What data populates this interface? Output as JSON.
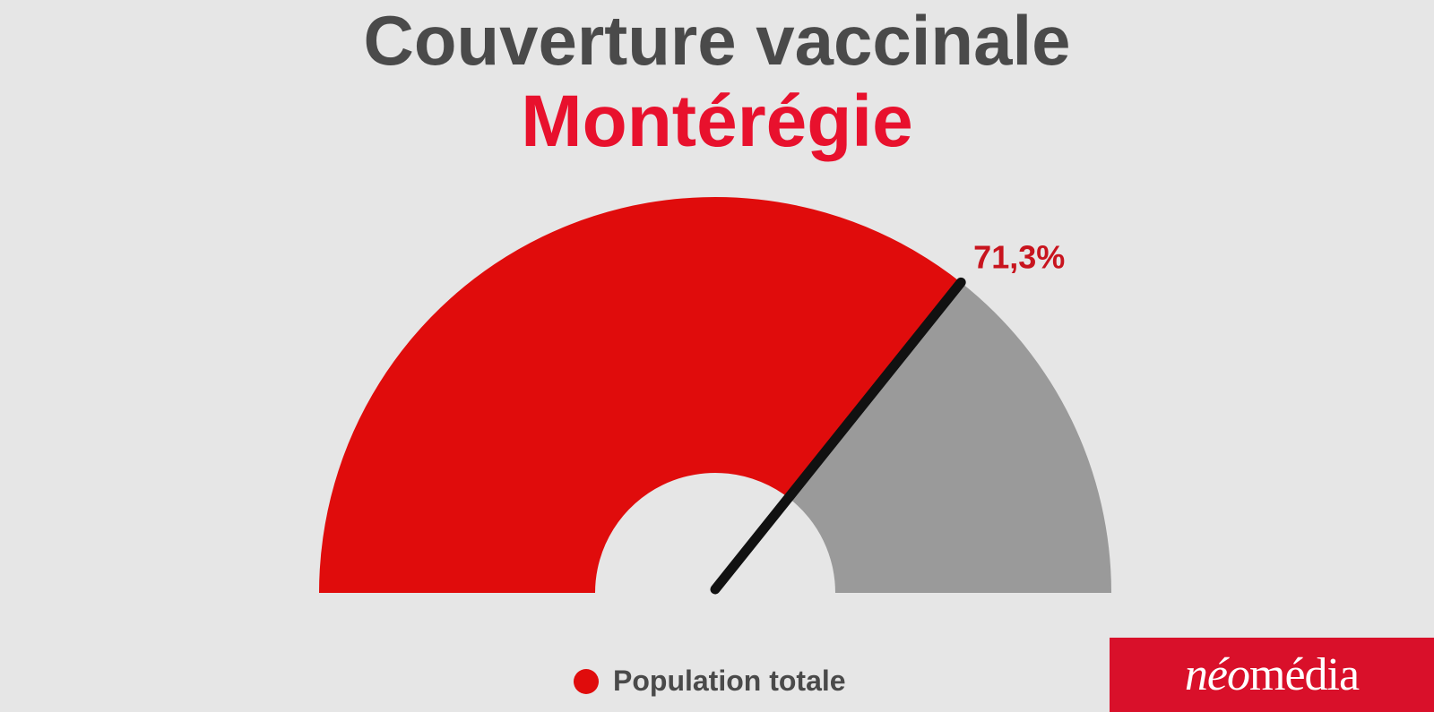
{
  "chart_data": {
    "type": "gauge",
    "title": "Couverture vaccinale",
    "subtitle": "Montérégie",
    "value": 71.3,
    "value_label": "71,3%",
    "range": [
      0,
      100
    ],
    "series": [
      {
        "name": "Population totale",
        "value": 71.3
      }
    ],
    "legend_position": "bottom"
  },
  "colors": {
    "filled": "#e00c0c",
    "remaining": "#9a9a9a",
    "needle": "#111111",
    "subtitle": "#e8112d",
    "value_label": "#c8141e",
    "logo_bg": "#d9102a"
  },
  "logo": {
    "part1": "néo",
    "part2": "média"
  }
}
